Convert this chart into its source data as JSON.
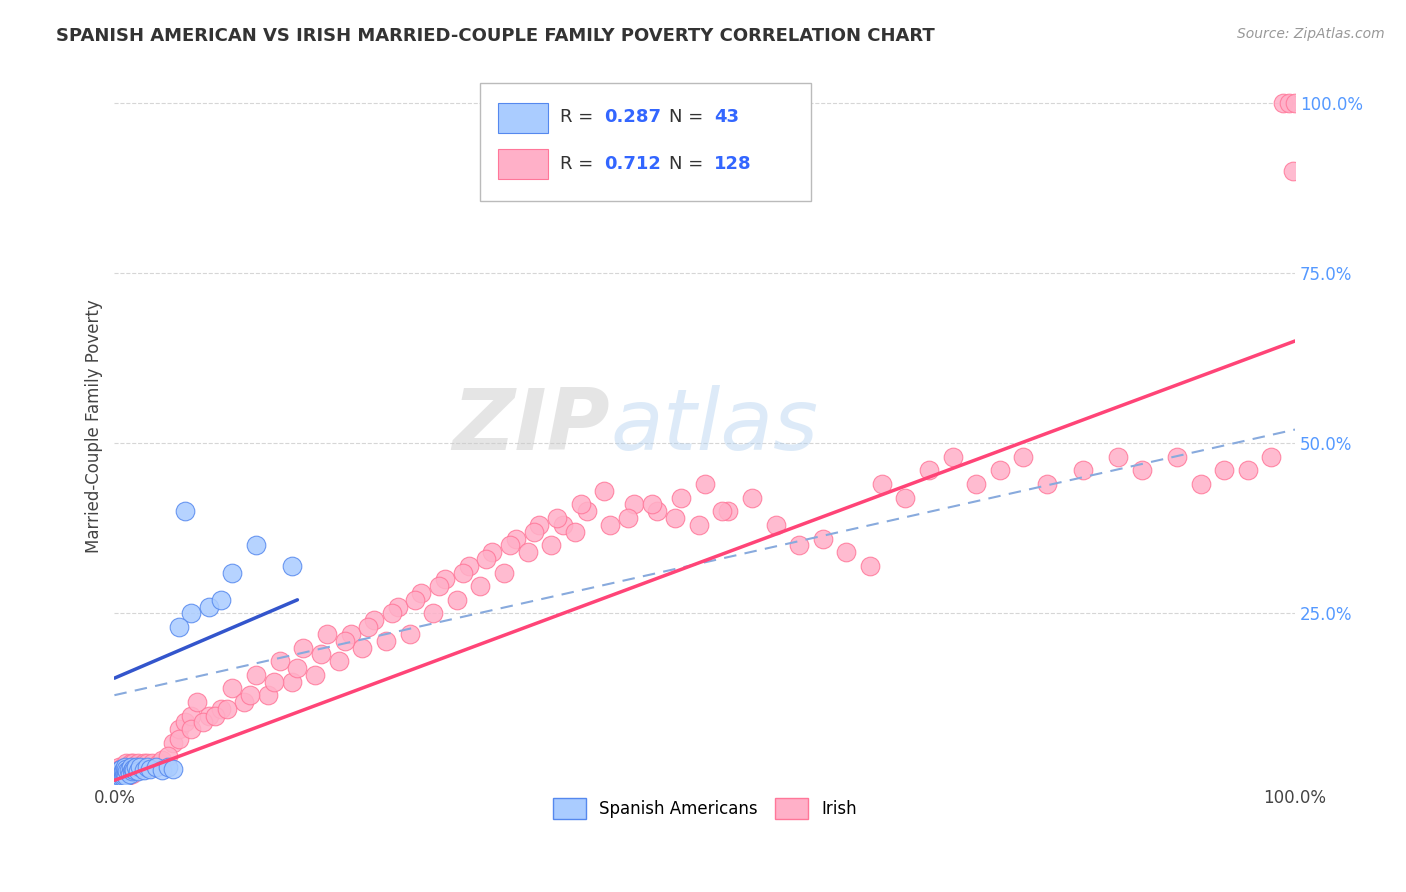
{
  "title": "SPANISH AMERICAN VS IRISH MARRIED-COUPLE FAMILY POVERTY CORRELATION CHART",
  "source": "Source: ZipAtlas.com",
  "ylabel": "Married-Couple Family Poverty",
  "watermark_zip": "ZIP",
  "watermark_atlas": "atlas",
  "blue_scatter_fill": "#AACCFF",
  "blue_scatter_edge": "#5588EE",
  "pink_scatter_fill": "#FFB0C8",
  "pink_scatter_edge": "#FF7799",
  "blue_line_color": "#3355CC",
  "pink_line_color": "#FF4477",
  "dash_line_color": "#88AADD",
  "background_color": "#FFFFFF",
  "grid_color": "#CCCCCC",
  "right_tick_color": "#5599FF",
  "title_color": "#333333",
  "source_color": "#999999"
}
